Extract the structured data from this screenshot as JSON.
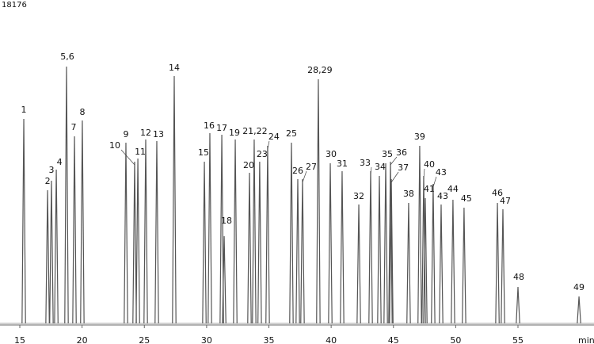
{
  "chart_data": {
    "type": "line",
    "title": "18176",
    "x_label": "min",
    "color": "#555555",
    "labels": [
      "1",
      "2",
      "3",
      "4",
      "5,6",
      "7",
      "8",
      "9",
      "10",
      "11",
      "12",
      "13",
      "14",
      "15",
      "16",
      "17",
      "18",
      "19",
      "20",
      "21,22",
      "23",
      "24",
      "25",
      "26",
      "27",
      "28,29",
      "30",
      "31",
      "32",
      "33",
      "34",
      "35",
      "36",
      "37",
      "38",
      "39",
      "40",
      "41",
      "43",
      "43",
      "44",
      "45",
      "46",
      "47",
      "48",
      "49"
    ],
    "x": [
      15.32,
      17.23,
      17.54,
      17.93,
      18.75,
      19.39,
      20.02,
      23.52,
      24.22,
      24.48,
      25.11,
      26.0,
      27.4,
      29.82,
      30.26,
      31.22,
      31.41,
      32.3,
      33.44,
      33.82,
      34.26,
      34.9,
      36.81,
      37.32,
      37.7,
      38.97,
      39.93,
      40.88,
      42.22,
      43.17,
      43.87,
      44.38,
      44.76,
      44.83,
      46.22,
      47.11,
      47.43,
      47.56,
      48.19,
      48.83,
      49.78,
      50.67,
      53.35,
      53.79,
      55.0,
      59.9
    ],
    "values": [
      64.5,
      42,
      45,
      48.5,
      81,
      59,
      64,
      57,
      51,
      52,
      58,
      57.5,
      78,
      51,
      60,
      59.5,
      27.5,
      58,
      47.5,
      58,
      51,
      56,
      57,
      45.5,
      45.5,
      77,
      50.5,
      48,
      37.5,
      48,
      46.5,
      50.5,
      51,
      45.5,
      38,
      56,
      46.5,
      39.5,
      44,
      37.5,
      39,
      36.5,
      38,
      36,
      11.5,
      8.5
    ],
    "xlim": [
      13.41,
      60.85
    ],
    "xticks": [
      15,
      20,
      25,
      30,
      35,
      40,
      45,
      50,
      55
    ],
    "ylim": [
      0,
      100
    ]
  }
}
